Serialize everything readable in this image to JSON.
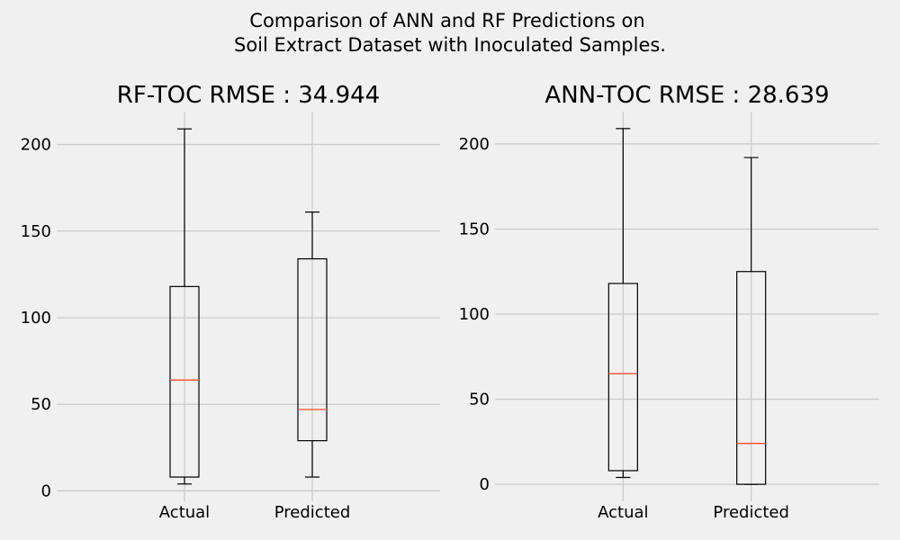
{
  "figure": {
    "suptitle_lines": [
      "Comparison of ANN and RF Predictions on",
      "Soil Extract Dataset with Inoculated Samples."
    ]
  },
  "colors": {
    "background": "#f0f0f0",
    "grid": "#cbcbcb",
    "box": "#000000",
    "median": "#fc4f30"
  },
  "chart_data": [
    {
      "type": "boxplot",
      "title": "RF-TOC RMSE : 34.944",
      "categories": [
        "Actual",
        "Predicted"
      ],
      "yticks": [
        0,
        50,
        100,
        150,
        200
      ],
      "ylim": [
        -6,
        219
      ],
      "grid": true,
      "boxes": [
        {
          "name": "Actual",
          "whisker_low": 4,
          "q1": 8,
          "median": 64,
          "q3": 118,
          "whisker_high": 209
        },
        {
          "name": "Predicted",
          "whisker_low": 8,
          "q1": 29,
          "median": 47,
          "q3": 134,
          "whisker_high": 161
        }
      ]
    },
    {
      "type": "boxplot",
      "title": "ANN-TOC RMSE : 28.639",
      "categories": [
        "Actual",
        "Predicted"
      ],
      "yticks": [
        0,
        50,
        100,
        150,
        200
      ],
      "ylim": [
        -10,
        219
      ],
      "grid": true,
      "boxes": [
        {
          "name": "Actual",
          "whisker_low": 4,
          "q1": 8,
          "median": 65,
          "q3": 118,
          "whisker_high": 209
        },
        {
          "name": "Predicted",
          "whisker_low": 0,
          "q1": 0,
          "median": 24,
          "q3": 125,
          "whisker_high": 192
        }
      ]
    }
  ]
}
